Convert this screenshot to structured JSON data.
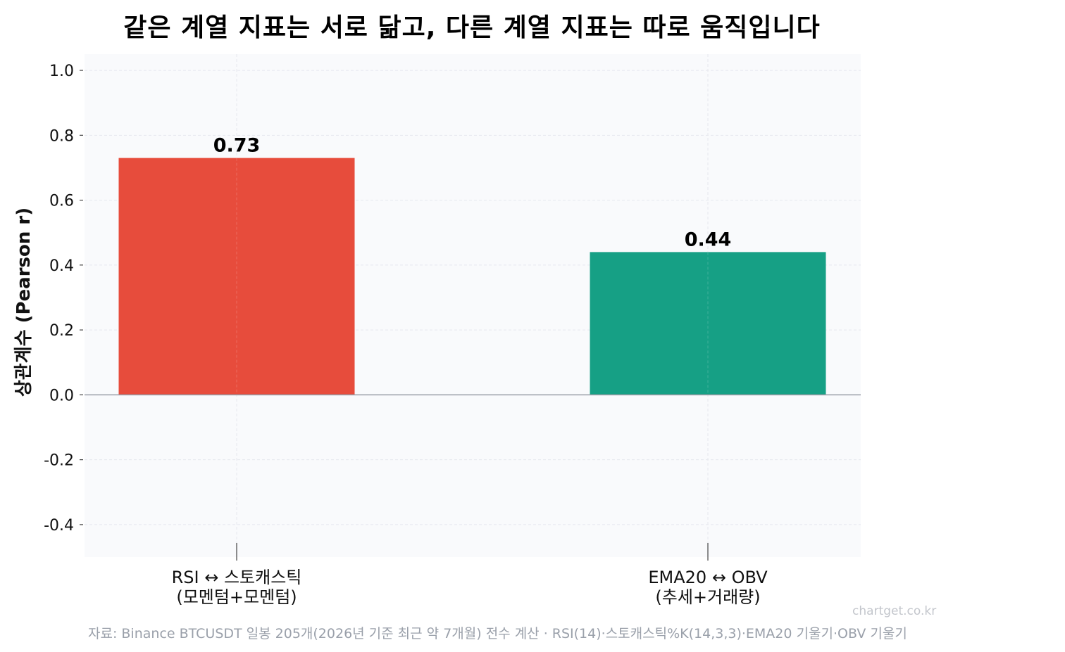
{
  "chart_data": {
    "type": "bar",
    "title": "같은 계열 지표는 서로 닮고, 다른 계열 지표는 따로 움직입니다",
    "xlabel": "",
    "ylabel": "상관계수 (Pearson r)",
    "ylim": [
      -0.5,
      1.05
    ],
    "yticks": [
      -0.4,
      -0.2,
      0.0,
      0.2,
      0.4,
      0.6,
      0.8,
      1.0
    ],
    "ytick_labels": [
      "-0.4",
      "-0.2",
      "0.0",
      "0.2",
      "0.4",
      "0.6",
      "0.8",
      "1.0"
    ],
    "categories": [
      [
        "RSI ↔ 스토캐스틱",
        "(모멘텀+모멘텀)"
      ],
      [
        "EMA20 ↔ OBV",
        "(추세+거래량)"
      ]
    ],
    "values": [
      0.73,
      0.44
    ],
    "value_labels": [
      "0.73",
      "0.44"
    ],
    "colors": [
      "#e74c3c",
      "#16a085"
    ],
    "grid": true,
    "legend": "none"
  },
  "footer": {
    "watermark": "chartget.co.kr",
    "source": "자료: Binance BTCUSDT 일봉 205개(2026년 기준 최근 약 7개월) 전수 계산 · RSI(14)·스토캐스틱%K(14,3,3)·EMA20 기울기·OBV 기울기"
  }
}
